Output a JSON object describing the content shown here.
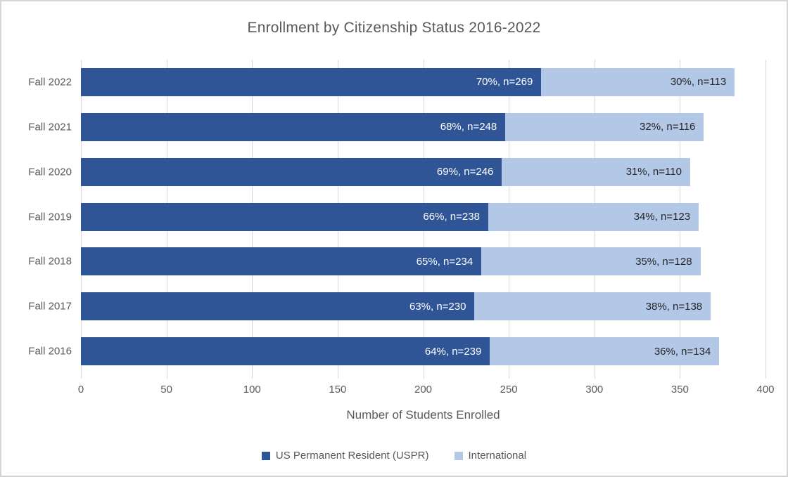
{
  "title": "Enrollment by Citizenship Status 2016-2022",
  "colors": {
    "uspr": "#2F5596",
    "international": "#B3C7E7",
    "label_on_dark": "#FFFFFF",
    "label_on_light": "#262626",
    "axis_text": "#595959",
    "gridline": "#D9D9D9"
  },
  "chart_data": {
    "type": "bar",
    "orientation": "horizontal",
    "stacked": true,
    "title": "Enrollment by Citizenship Status 2016-2022",
    "categories": [
      "Fall 2022",
      "Fall 2021",
      "Fall 2020",
      "Fall 2019",
      "Fall 2018",
      "Fall 2017",
      "Fall 2016"
    ],
    "series": [
      {
        "name": "US Permanent Resident (USPR)",
        "values": [
          269,
          248,
          246,
          238,
          234,
          230,
          239
        ],
        "labels": [
          "70%, n=269",
          "68%, n=248",
          "69%, n=246",
          "66%, n=238",
          "65%, n=234",
          "63%, n=230",
          "64%, n=239"
        ]
      },
      {
        "name": "International",
        "values": [
          113,
          116,
          110,
          123,
          128,
          138,
          134
        ],
        "labels": [
          "30%, n=113",
          "32%, n=116",
          "31%, n=110",
          "34%, n=123",
          "35%, n=128",
          "38%, n=138",
          "36%, n=134"
        ]
      }
    ],
    "xlabel": "Number of Students Enrolled",
    "ylabel": "",
    "xlim": [
      0,
      400
    ],
    "xticks": [
      0,
      50,
      100,
      150,
      200,
      250,
      300,
      350,
      400
    ],
    "grid": true,
    "legend_position": "bottom"
  }
}
